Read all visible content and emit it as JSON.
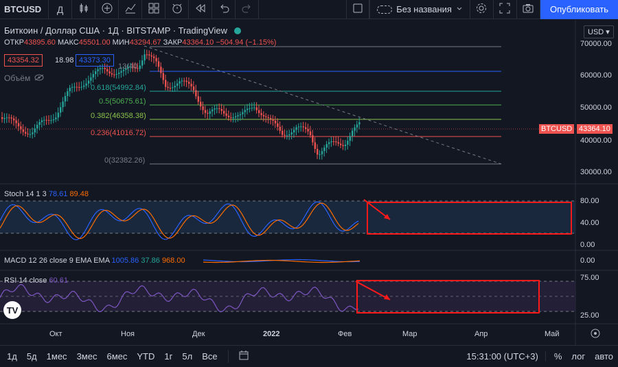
{
  "toolbar": {
    "symbol": "BTCUSD",
    "interval": "Д",
    "layout_name": "Без названия",
    "publish_label": "Опубликовать"
  },
  "legend": {
    "title": "Биткоин / Доллар США · 1Д · BITSTAMP · TradingView",
    "open_label": "ОТКР",
    "open": "43895.60",
    "high_label": "МАКС",
    "high": "45501.00",
    "low_label": "МИН",
    "low": "43294.67",
    "close_label": "ЗАКР",
    "close": "43364.10",
    "change": "−504.94 (−1.15%)",
    "bid": "43354.32",
    "spread": "18.98",
    "ask": "43373.30",
    "volume_label": "Объём"
  },
  "currency": "USD",
  "price_axis": [
    "70000.00",
    "60000.00",
    "50000.00",
    "40000.00",
    "30000.00"
  ],
  "last_price": {
    "symbol": "BTCUSD",
    "value": "43364.10"
  },
  "fib_levels": [
    {
      "label": "1(",
      "hidden": "",
      "color": "#787b86"
    },
    {
      "label": "1(",
      "color": "#787b86"
    },
    {
      "label": "0.618(54992.84)",
      "color": "#26a69a"
    },
    {
      "label": "0.5(50675.61)",
      "color": "#4caf50"
    },
    {
      "label": "0.382(46358.38)",
      "color": "#8bc34a"
    },
    {
      "label": "0.236(41016.72)",
      "color": "#ef5350"
    },
    {
      "label": "0(32382.26)",
      "color": "#787b86"
    }
  ],
  "fib_top_label": "13",
  "fib_top_label2": "(40",
  "stoch": {
    "label": "Stoch 14 1 3",
    "k": "78.61",
    "d": "89.48",
    "axis": [
      "80.00",
      "40.00",
      "0.00"
    ]
  },
  "macd": {
    "label": "MACD 12 26 close 9 EMA EMA",
    "v1": "1005.86",
    "v2": "37.86",
    "v3": "968.00",
    "axis": [
      "0.00"
    ]
  },
  "rsi": {
    "label": "RSI 14 close",
    "value": "60.61",
    "axis": [
      "75.00",
      "25.00"
    ]
  },
  "time_axis": [
    "Окт",
    "Ноя",
    "Дек",
    "2022",
    "Фев",
    "Мар",
    "Апр",
    "Май"
  ],
  "ranges": [
    "1д",
    "5д",
    "1мес",
    "3мес",
    "6мес",
    "YTD",
    "1г",
    "5л",
    "Все"
  ],
  "clock": "15:31:00 (UTC+3)",
  "bottom_right": [
    "%",
    "лог",
    "авто"
  ],
  "colors": {
    "up": "#26a69a",
    "down": "#ef5350",
    "accent": "#2962ff",
    "annotation": "#ff1a1a"
  },
  "icons": [
    "candles-icon",
    "plus-circle-icon",
    "indicators-icon",
    "templates-icon",
    "alert-icon",
    "replay-icon",
    "undo-icon",
    "redo-icon",
    "square-icon",
    "gear-icon",
    "fullscreen-icon",
    "camera-icon",
    "calendar-range-icon",
    "settings-gear-icon",
    "tv-logo-icon"
  ]
}
